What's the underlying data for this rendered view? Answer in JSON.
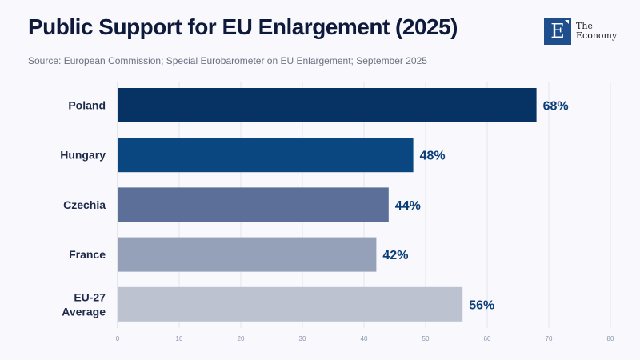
{
  "header": {
    "title": "Public Support for EU Enlargement (2025)",
    "subtitle": "Source: European Commission; Special Eurobarometer on EU Enlargement; September 2025"
  },
  "logo": {
    "mark": "E",
    "line1": "The",
    "line2": "Economy"
  },
  "chart_data": {
    "type": "bar",
    "orientation": "horizontal",
    "title": "Public Support for EU Enlargement (2025)",
    "subtitle": "Source: European Commission; Special Eurobarometer on EU Enlargement; September 2025",
    "categories": [
      [
        "Poland"
      ],
      [
        "Hungary"
      ],
      [
        "Czechia"
      ],
      [
        "France"
      ],
      [
        "EU-27",
        "Average"
      ]
    ],
    "values": [
      68,
      48,
      44,
      42,
      56
    ],
    "value_labels": [
      "68%",
      "48%",
      "44%",
      "42%",
      "56%"
    ],
    "colors": [
      "#063363",
      "#0a4680",
      "#5b6f98",
      "#95a1b8",
      "#bcc2d0"
    ],
    "xlabel": "",
    "ylabel": "",
    "xlim": [
      0,
      80
    ],
    "xticks": [
      0,
      10,
      20,
      30,
      40,
      50,
      60,
      70,
      80
    ],
    "grid": true,
    "legend": "none"
  }
}
